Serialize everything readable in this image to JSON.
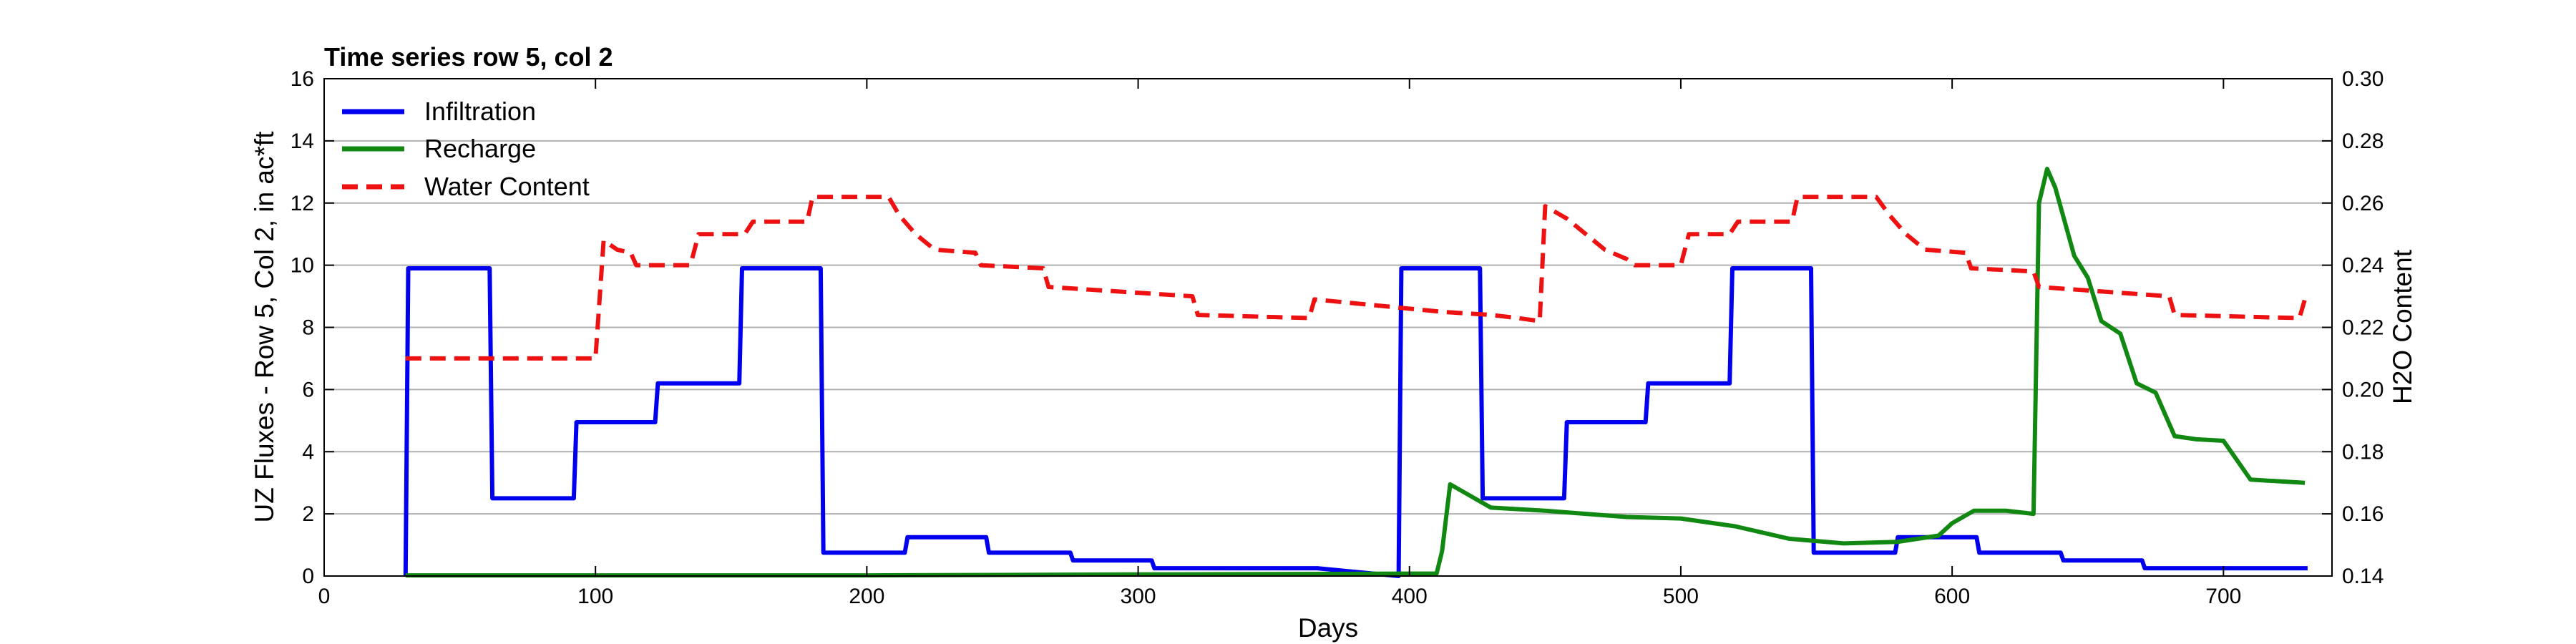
{
  "chart_data": {
    "type": "line",
    "title": "Time series row 5, col 2",
    "xlabel": "Days",
    "ylabel_left": "UZ Fluxes - Row 5, Col 2,  in ac*ft",
    "ylabel_right": "H2O Content",
    "xlim": [
      0,
      740
    ],
    "ylim_left": [
      0,
      16
    ],
    "ylim_right": [
      0.14,
      0.3
    ],
    "xticks": [
      0,
      100,
      200,
      300,
      400,
      500,
      600,
      700
    ],
    "yticks_left": [
      0,
      2,
      4,
      6,
      8,
      10,
      12,
      14,
      16
    ],
    "yticks_right": [
      0.14,
      0.16,
      0.18,
      0.2,
      0.22,
      0.24,
      0.26,
      0.28,
      0.3
    ],
    "grid": "horizontal",
    "legend_position": "top-left",
    "series": [
      {
        "name": "Infiltration",
        "axis": "left",
        "color": "#0000ee",
        "style": "solid",
        "points": [
          [
            30,
            0
          ],
          [
            31,
            9.9
          ],
          [
            61,
            9.9
          ],
          [
            62,
            2.5
          ],
          [
            92,
            2.5
          ],
          [
            93,
            4.95
          ],
          [
            122,
            4.95
          ],
          [
            123,
            6.2
          ],
          [
            153,
            6.2
          ],
          [
            154,
            9.9
          ],
          [
            183,
            9.9
          ],
          [
            184,
            0.75
          ],
          [
            214,
            0.75
          ],
          [
            215,
            1.25
          ],
          [
            244,
            1.25
          ],
          [
            245,
            0.75
          ],
          [
            275,
            0.75
          ],
          [
            276,
            0.5
          ],
          [
            305,
            0.5
          ],
          [
            306,
            0.25
          ],
          [
            366,
            0.25
          ],
          [
            396,
            0
          ],
          [
            397,
            9.9
          ],
          [
            426,
            9.9
          ],
          [
            427,
            2.5
          ],
          [
            457,
            2.5
          ],
          [
            458,
            4.95
          ],
          [
            487,
            4.95
          ],
          [
            488,
            6.2
          ],
          [
            518,
            6.2
          ],
          [
            519,
            9.9
          ],
          [
            548,
            9.9
          ],
          [
            549,
            0.75
          ],
          [
            579,
            0.75
          ],
          [
            580,
            1.25
          ],
          [
            609,
            1.25
          ],
          [
            610,
            0.75
          ],
          [
            640,
            0.75
          ],
          [
            641,
            0.5
          ],
          [
            670,
            0.5
          ],
          [
            671,
            0.25
          ],
          [
            731,
            0.25
          ]
        ]
      },
      {
        "name": "Recharge",
        "axis": "left",
        "color": "#118811",
        "style": "solid",
        "points": [
          [
            30,
            0.02
          ],
          [
            200,
            0.02
          ],
          [
            300,
            0.05
          ],
          [
            410,
            0.08
          ],
          [
            412,
            0.8
          ],
          [
            415,
            2.95
          ],
          [
            420,
            2.7
          ],
          [
            430,
            2.2
          ],
          [
            450,
            2.1
          ],
          [
            480,
            1.9
          ],
          [
            500,
            1.85
          ],
          [
            520,
            1.6
          ],
          [
            540,
            1.2
          ],
          [
            560,
            1.05
          ],
          [
            580,
            1.1
          ],
          [
            595,
            1.3
          ],
          [
            600,
            1.7
          ],
          [
            608,
            2.1
          ],
          [
            620,
            2.1
          ],
          [
            630,
            2.0
          ],
          [
            632,
            12.0
          ],
          [
            635,
            13.1
          ],
          [
            638,
            12.5
          ],
          [
            645,
            10.3
          ],
          [
            650,
            9.6
          ],
          [
            655,
            8.2
          ],
          [
            662,
            7.8
          ],
          [
            668,
            6.2
          ],
          [
            675,
            5.9
          ],
          [
            682,
            4.5
          ],
          [
            690,
            4.4
          ],
          [
            700,
            4.35
          ],
          [
            710,
            3.1
          ],
          [
            730,
            3.0
          ]
        ]
      },
      {
        "name": "Water Content",
        "axis": "right",
        "color": "#ee1111",
        "style": "dashed",
        "points": [
          [
            30,
            0.21
          ],
          [
            100,
            0.21
          ],
          [
            103,
            0.248
          ],
          [
            108,
            0.245
          ],
          [
            113,
            0.244
          ],
          [
            115,
            0.24
          ],
          [
            135,
            0.24
          ],
          [
            138,
            0.25
          ],
          [
            155,
            0.25
          ],
          [
            158,
            0.254
          ],
          [
            178,
            0.254
          ],
          [
            180,
            0.262
          ],
          [
            208,
            0.262
          ],
          [
            212,
            0.256
          ],
          [
            218,
            0.25
          ],
          [
            225,
            0.245
          ],
          [
            240,
            0.244
          ],
          [
            242,
            0.24
          ],
          [
            265,
            0.239
          ],
          [
            267,
            0.233
          ],
          [
            320,
            0.23
          ],
          [
            322,
            0.224
          ],
          [
            363,
            0.223
          ],
          [
            365,
            0.229
          ],
          [
            412,
            0.225
          ],
          [
            430,
            0.224
          ],
          [
            440,
            0.223
          ],
          [
            448,
            0.222
          ],
          [
            450,
            0.259
          ],
          [
            458,
            0.255
          ],
          [
            465,
            0.25
          ],
          [
            472,
            0.245
          ],
          [
            480,
            0.242
          ],
          [
            483,
            0.24
          ],
          [
            500,
            0.24
          ],
          [
            503,
            0.25
          ],
          [
            518,
            0.25
          ],
          [
            521,
            0.254
          ],
          [
            541,
            0.254
          ],
          [
            543,
            0.262
          ],
          [
            572,
            0.262
          ],
          [
            577,
            0.256
          ],
          [
            583,
            0.25
          ],
          [
            590,
            0.245
          ],
          [
            605,
            0.244
          ],
          [
            607,
            0.239
          ],
          [
            630,
            0.238
          ],
          [
            632,
            0.233
          ],
          [
            680,
            0.23
          ],
          [
            682,
            0.224
          ],
          [
            728,
            0.223
          ],
          [
            730,
            0.229
          ]
        ]
      }
    ]
  }
}
